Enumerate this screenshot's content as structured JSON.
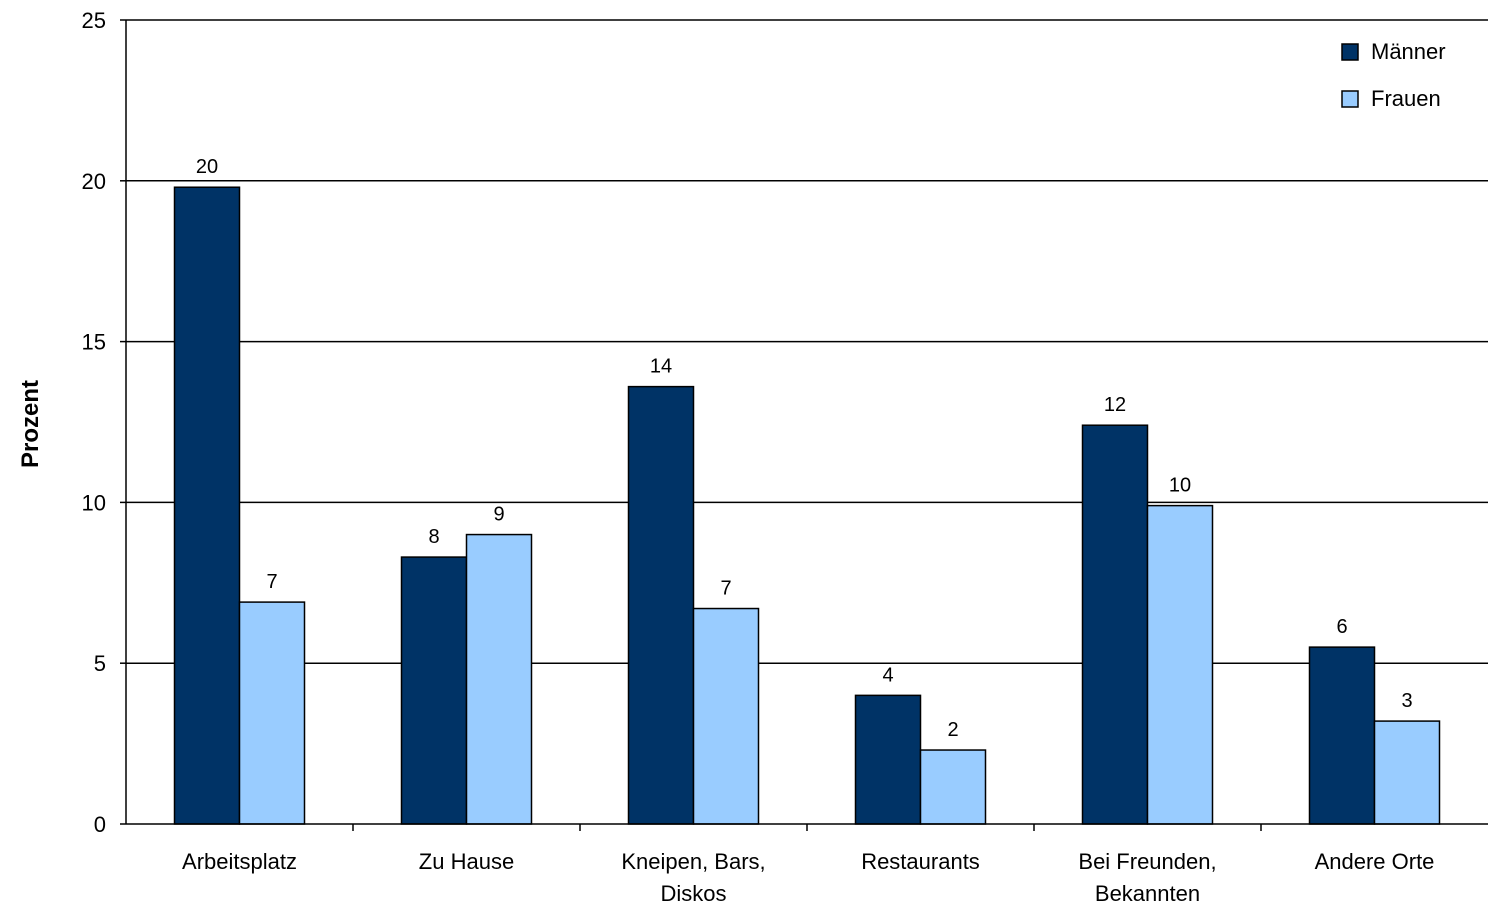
{
  "chart_data": {
    "type": "bar",
    "title": "",
    "xlabel": "",
    "ylabel": "Prozent",
    "ylim": [
      0,
      25
    ],
    "yticks": [
      0,
      5,
      10,
      15,
      20,
      25
    ],
    "grid": true,
    "legend_position": "top-right",
    "categories": [
      [
        "Arbeitsplatz"
      ],
      [
        "Zu Hause"
      ],
      [
        "Kneipen, Bars,",
        "Diskos"
      ],
      [
        "Restaurants"
      ],
      [
        "Bei Freunden,",
        "Bekannten"
      ],
      [
        "Andere Orte"
      ]
    ],
    "series": [
      {
        "name": "Männer",
        "color": "#003366",
        "values": [
          19.8,
          8.3,
          13.6,
          4.0,
          12.4,
          5.5
        ],
        "labels": [
          "20",
          "8",
          "14",
          "4",
          "12",
          "6"
        ]
      },
      {
        "name": "Frauen",
        "color": "#99CCFF",
        "values": [
          6.9,
          9.0,
          6.7,
          2.3,
          9.9,
          3.2
        ],
        "labels": [
          "7",
          "9",
          "7",
          "2",
          "10",
          "3"
        ]
      }
    ]
  }
}
